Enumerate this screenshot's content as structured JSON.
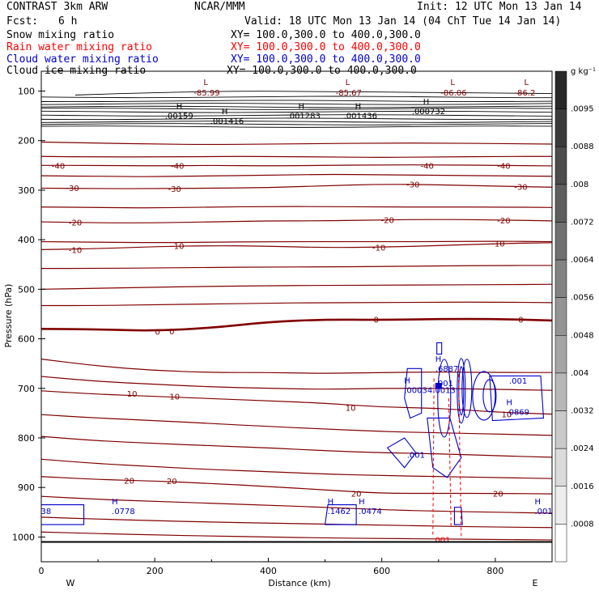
{
  "header": {
    "model": "CONTRAST  3km ARW",
    "center": "NCAR/MMM",
    "init": "Init: 12 UTC Mon 13 Jan 14",
    "fcst_label": "Fcst:",
    "fcst_value": "6 h",
    "valid": "Valid: 18 UTC Mon 13 Jan 14 (04 ChT Tue 14 Jan 14)"
  },
  "fields": [
    {
      "name": "Snow mixing ratio",
      "xy": "XY= 100.0,300.0 to 400.0,300.0",
      "color": "#000000"
    },
    {
      "name": "Rain water mixing ratio",
      "xy": "XY= 100.0,300.0 to 400.0,300.0",
      "color": "#ff0000"
    },
    {
      "name": "Cloud water mixing ratio",
      "xy": "XY= 100.0,300.0 to 400.0,300.0",
      "color": "#0000cc"
    },
    {
      "name": "Cloud ice mixing ratio",
      "xy": "XY= 100.0,300.0 to 400.0,300.0",
      "color": "#000000"
    }
  ],
  "chart_data": {
    "type": "contour",
    "xlabel": "Distance (km)",
    "ylabel": "Pressure (hPa)",
    "xlim": [
      0,
      900
    ],
    "ylim": [
      1050,
      60
    ],
    "x_ticks": [
      0,
      200,
      400,
      600,
      800
    ],
    "y_ticks": [
      100,
      200,
      300,
      400,
      500,
      600,
      700,
      800,
      900,
      1000
    ],
    "x_end_labels": {
      "left": "W",
      "right": "E"
    },
    "colorbar": {
      "unit": "g kg⁻¹",
      "ticks": [
        ".0095",
        ".0088",
        ".008",
        ".0072",
        ".0064",
        ".0056",
        ".0048",
        ".004",
        ".0032",
        ".0024",
        ".0016",
        ".0008"
      ]
    },
    "temperature_isotherm_labels": [
      {
        "text": "-40",
        "x": 30,
        "p": 250
      },
      {
        "text": "-40",
        "x": 240,
        "p": 250
      },
      {
        "text": "-40",
        "x": 680,
        "p": 250
      },
      {
        "text": "-40",
        "x": 815,
        "p": 250
      },
      {
        "text": "-30",
        "x": 55,
        "p": 295
      },
      {
        "text": "-30",
        "x": 235,
        "p": 297
      },
      {
        "text": "-30",
        "x": 655,
        "p": 288
      },
      {
        "text": "-30",
        "x": 845,
        "p": 293
      },
      {
        "text": "-20",
        "x": 60,
        "p": 365
      },
      {
        "text": "-20",
        "x": 610,
        "p": 360
      },
      {
        "text": "-20",
        "x": 815,
        "p": 361
      },
      {
        "text": "-10",
        "x": 60,
        "p": 420
      },
      {
        "text": "-10",
        "x": 240,
        "p": 412
      },
      {
        "text": "-10",
        "x": 595,
        "p": 415
      },
      {
        "text": "-10",
        "x": 805,
        "p": 407
      },
      {
        "text": "0",
        "x": 205,
        "p": 585
      },
      {
        "text": "0",
        "x": 230,
        "p": 584
      },
      {
        "text": "0",
        "x": 590,
        "p": 561
      },
      {
        "text": "0",
        "x": 845,
        "p": 561
      },
      {
        "text": "10",
        "x": 160,
        "p": 710
      },
      {
        "text": "10",
        "x": 235,
        "p": 716
      },
      {
        "text": "10",
        "x": 545,
        "p": 739
      },
      {
        "text": "10",
        "x": 820,
        "p": 752
      },
      {
        "text": "20",
        "x": 155,
        "p": 886
      },
      {
        "text": "20",
        "x": 230,
        "p": 887
      },
      {
        "text": "20",
        "x": 555,
        "p": 912
      },
      {
        "text": "20",
        "x": 805,
        "p": 912
      }
    ],
    "pressure_extrema": [
      {
        "type": "L",
        "value": "-85.99",
        "x": 300,
        "p": 93
      },
      {
        "type": "L",
        "value": "-85.67",
        "x": 550,
        "p": 93
      },
      {
        "type": "L",
        "value": "-86.06",
        "x": 735,
        "p": 93
      },
      {
        "type": "L",
        "value": "-86.2",
        "x": 865,
        "p": 93
      }
    ],
    "snow_maxima": [
      {
        "type": "H",
        "value": ".00159",
        "x": 255,
        "p": 139
      },
      {
        "type": "H",
        "value": ".001416",
        "x": 335,
        "p": 150
      },
      {
        "type": "H",
        "value": ".001283",
        "x": 470,
        "p": 139
      },
      {
        "type": "H",
        "value": ".001436",
        "x": 570,
        "p": 139
      },
      {
        "type": "H",
        "value": ".000732",
        "x": 690,
        "p": 130
      }
    ],
    "cloud_water_maxima": [
      {
        "type": "H",
        "value": ".6887",
        "x": 700,
        "p": 663
      },
      {
        "type": "H",
        "value": ".00034",
        "x": 645,
        "p": 706
      },
      {
        "type": "H",
        "value": ".0869",
        "x": 825,
        "p": 750
      },
      {
        "type": "H",
        "value": ".0778",
        "x": 130,
        "p": 950
      },
      {
        "type": "H",
        "value": ".1462",
        "x": 510,
        "p": 950
      },
      {
        "type": "H",
        "value": ".0474",
        "x": 565,
        "p": 950
      },
      {
        "type": "H",
        "value": ".001",
        "x": 875,
        "p": 950
      },
      {
        "type": "",
        "value": ".001",
        "x": 830,
        "p": 687
      },
      {
        "type": "",
        "value": ".001",
        "x": 650,
        "p": 837
      },
      {
        "type": "",
        "value": ".001",
        "x": 700,
        "p": 692
      },
      {
        "type": "",
        "value": ".0013",
        "x": 695,
        "p": 706
      },
      {
        "type": "",
        "value": "38",
        "x": 5,
        "p": 950
      }
    ],
    "rain_labels": [
      {
        "value": ".001",
        "x": 695,
        "p": 1005
      }
    ]
  }
}
